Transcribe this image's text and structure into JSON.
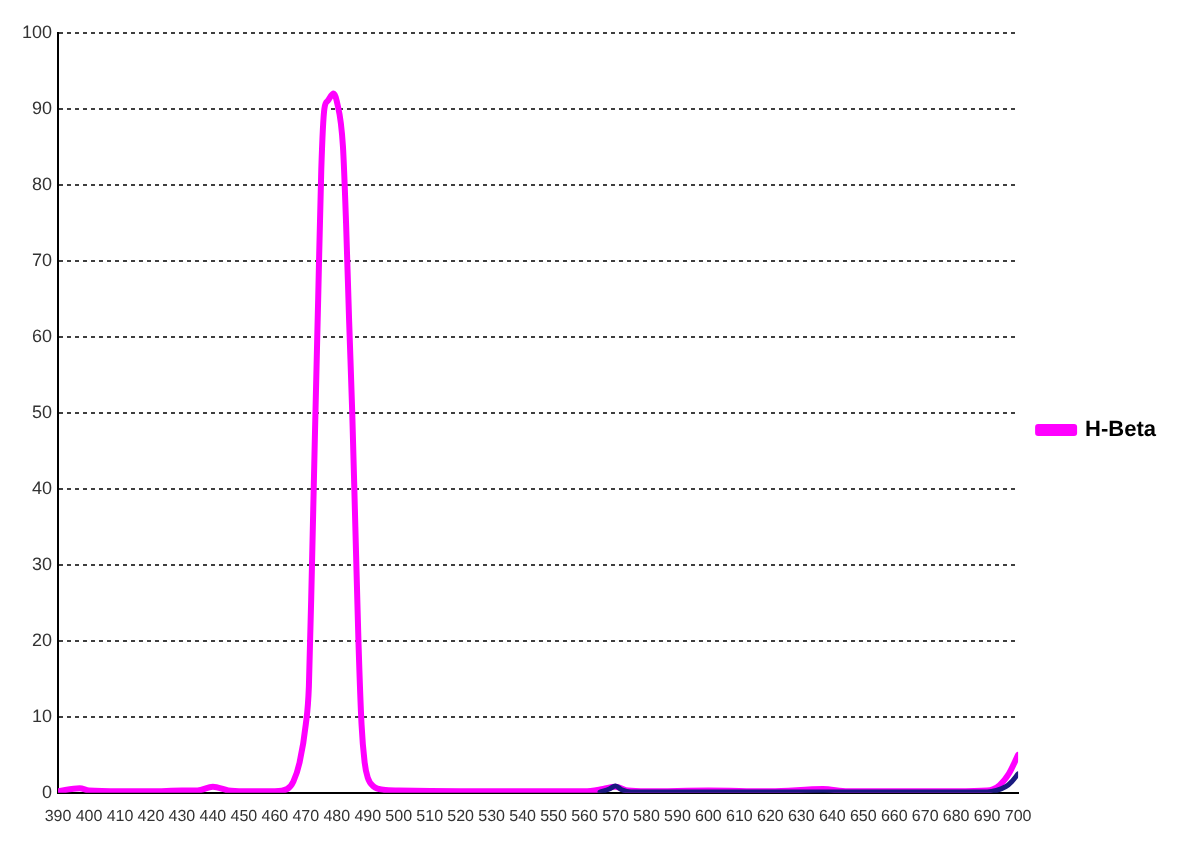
{
  "chart_data": {
    "type": "line",
    "xlim": [
      390,
      700
    ],
    "xticks": [
      390,
      400,
      410,
      420,
      430,
      440,
      450,
      460,
      470,
      480,
      490,
      500,
      510,
      520,
      530,
      540,
      550,
      560,
      570,
      580,
      590,
      600,
      610,
      620,
      630,
      640,
      650,
      660,
      670,
      680,
      690,
      700
    ],
    "ylim": [
      0,
      100
    ],
    "yticks": [
      0,
      10,
      20,
      30,
      40,
      50,
      60,
      70,
      80,
      90,
      100
    ],
    "grid": "y",
    "legend": "right",
    "marker": "none",
    "line_style": "solid",
    "series": [
      {
        "color": "#1a1a80",
        "x": [
          565,
          568,
          570,
          572,
          575,
          690,
          693,
          696,
          698,
          700
        ],
        "values": [
          0.1,
          0.5,
          0.9,
          0.4,
          0.1,
          0.1,
          0.3,
          0.8,
          1.5,
          2.5
        ]
      },
      {
        "name": "H-Beta",
        "color": "#ff00ff",
        "x": [
          390,
          397,
          400,
          410,
          420,
          430,
          435,
          440,
          445,
          450,
          460,
          464,
          466,
          468,
          470,
          471,
          472,
          473,
          474,
          475,
          476,
          477,
          479,
          480,
          482,
          483,
          484,
          485,
          486,
          487,
          488,
          489,
          490,
          492,
          495,
          500,
          520,
          540,
          560,
          566,
          570,
          574,
          580,
          600,
          620,
          637,
          645,
          680,
          690,
          694,
          697,
          700
        ],
        "values": [
          0.2,
          0.6,
          0.3,
          0.2,
          0.2,
          0.3,
          0.3,
          0.8,
          0.3,
          0.2,
          0.2,
          0.5,
          1.5,
          4,
          9,
          14,
          30,
          48,
          65,
          82,
          90,
          91,
          92,
          91,
          85,
          75,
          62,
          50,
          35,
          20,
          9,
          4,
          2,
          0.8,
          0.4,
          0.3,
          0.2,
          0.2,
          0.2,
          0.5,
          0.8,
          0.3,
          0.2,
          0.3,
          0.2,
          0.5,
          0.2,
          0.2,
          0.3,
          1,
          2.5,
          5
        ]
      }
    ]
  }
}
